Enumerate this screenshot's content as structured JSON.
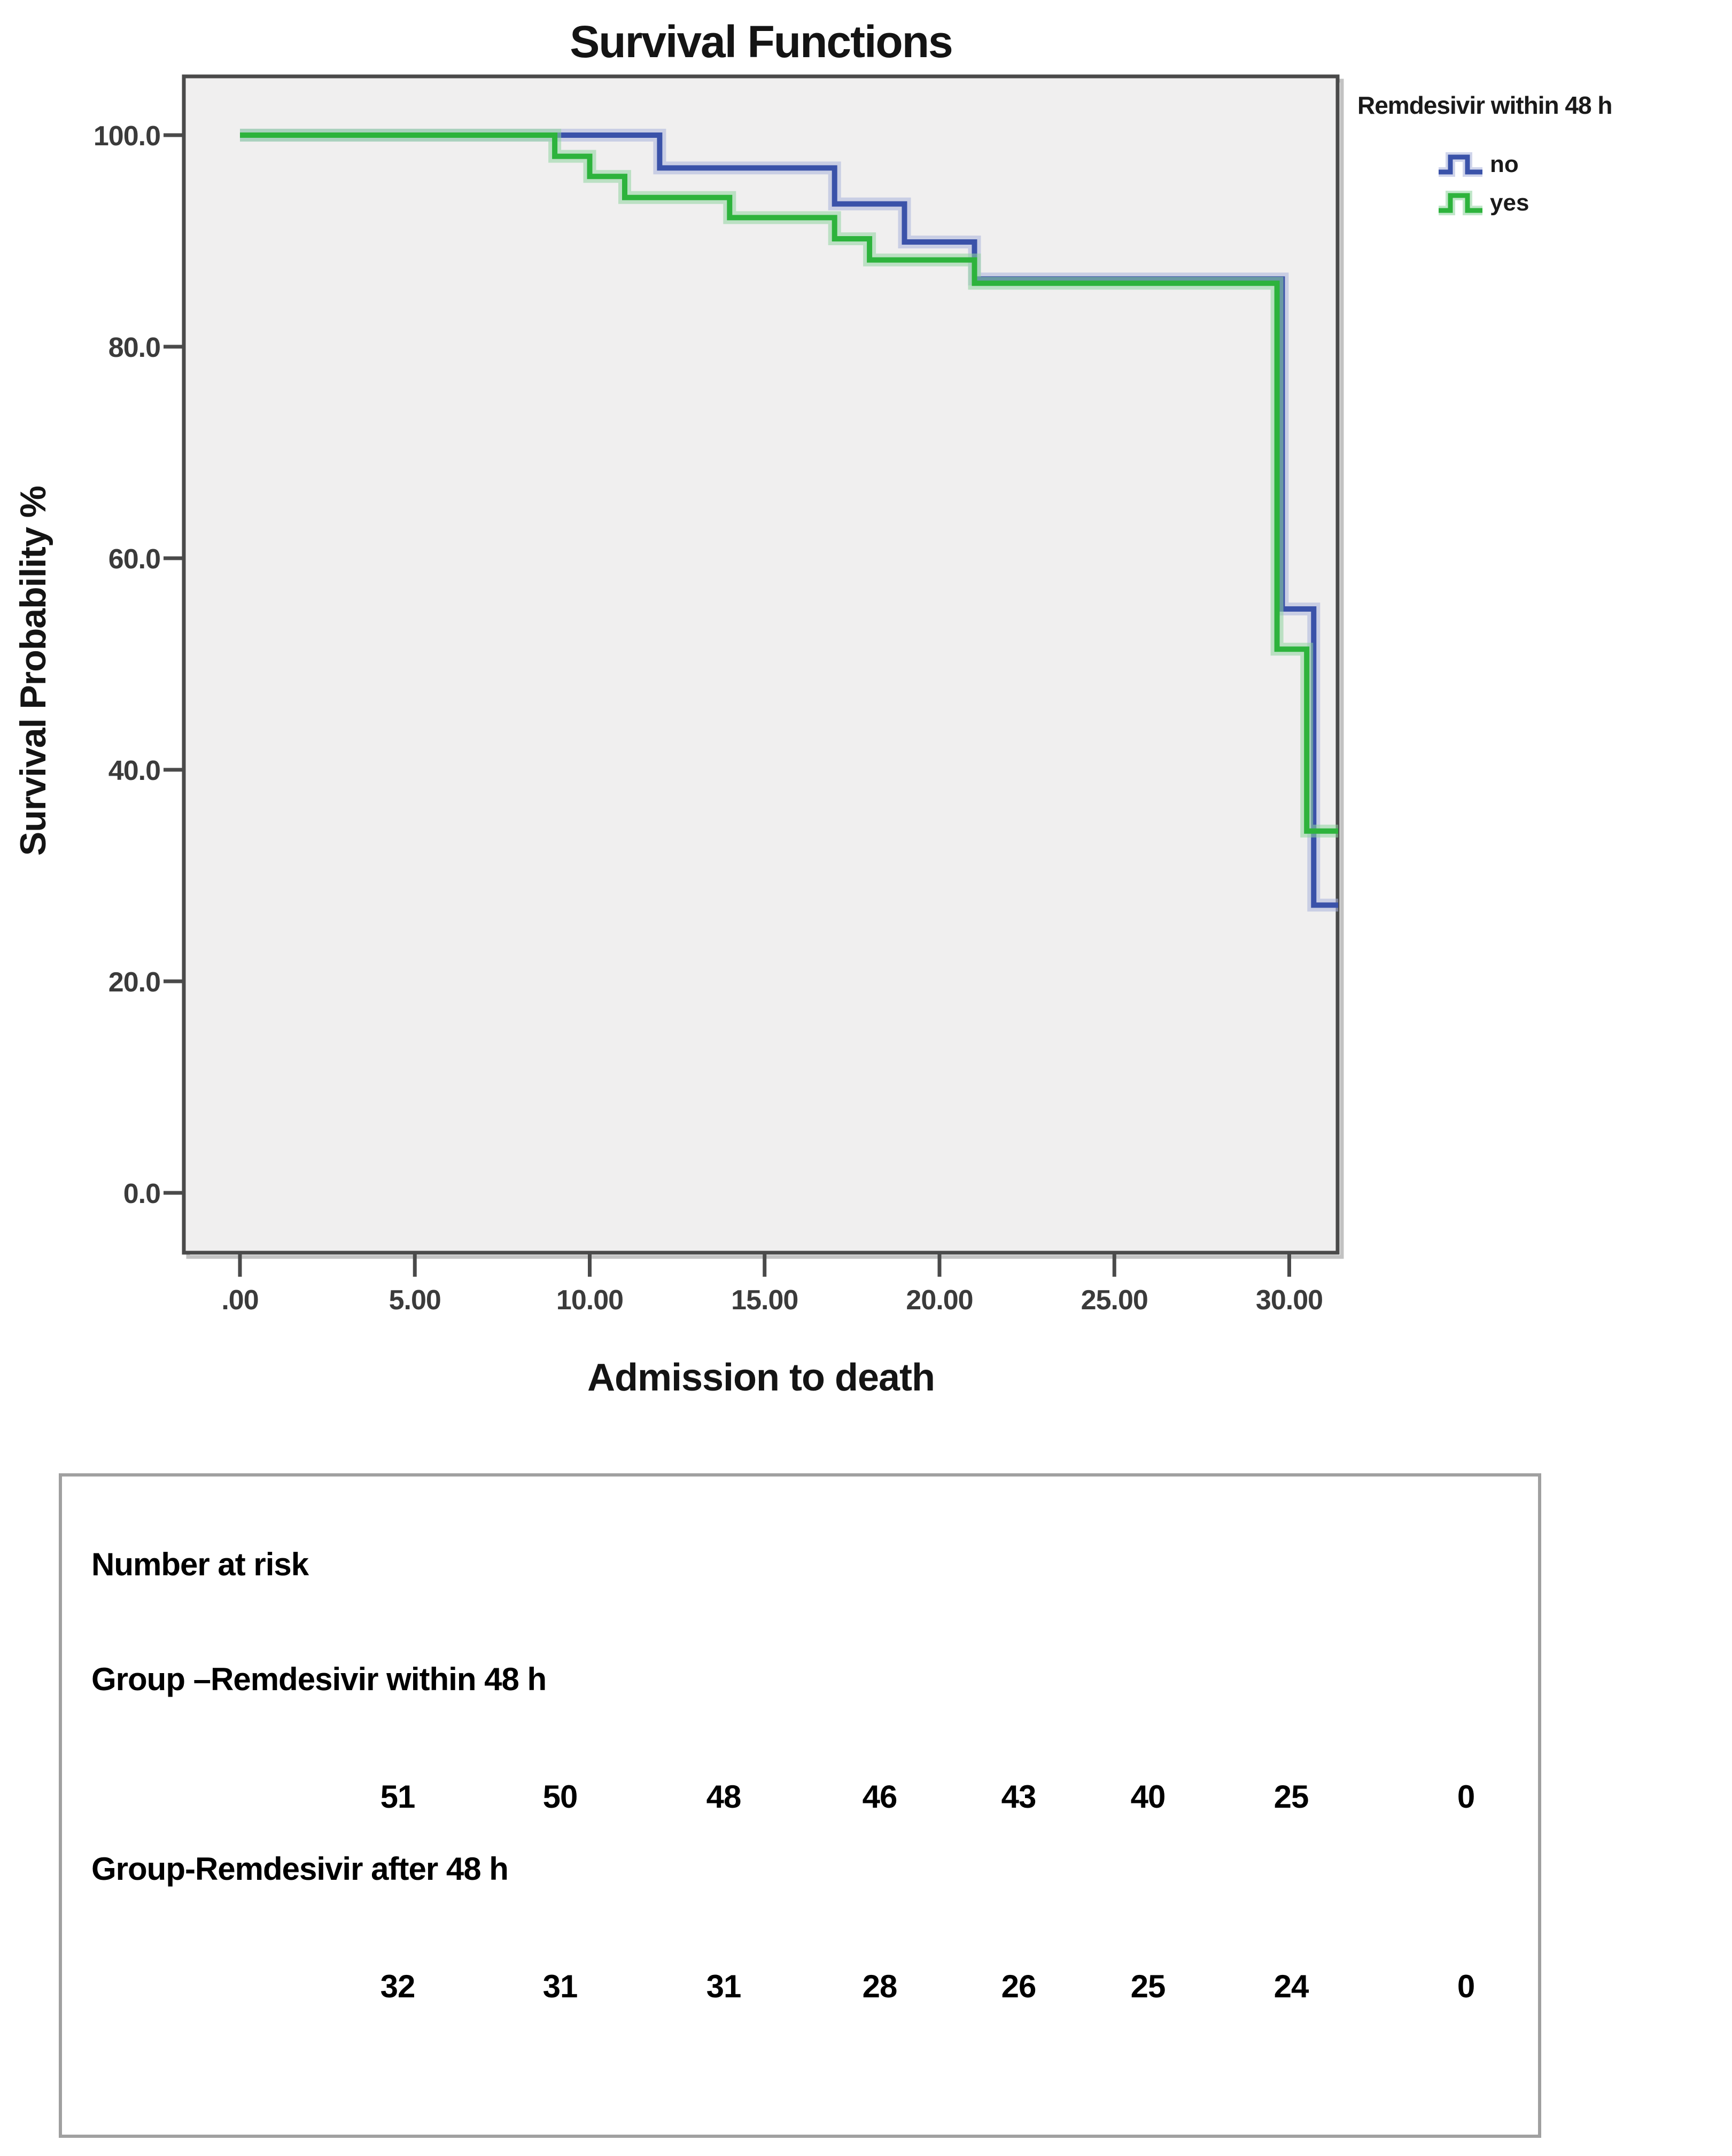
{
  "chart": {
    "title": "Survival Functions",
    "x_axis": {
      "title": "Admission to death",
      "tick_labels": [
        ".00",
        "5.00",
        "10.00",
        "15.00",
        "20.00",
        "25.00",
        "30.00"
      ],
      "tick_values": [
        0,
        5,
        10,
        15,
        20,
        25,
        30
      ]
    },
    "y_axis": {
      "title": "Survival Probability %",
      "tick_labels": [
        "100.0",
        "80.0",
        "60.0",
        "40.0",
        "20.0",
        "0.0"
      ],
      "tick_values": [
        100,
        80,
        60,
        40,
        20,
        0
      ]
    },
    "legend": {
      "title": "Remdesivir within 48 h",
      "entries": [
        {
          "label": "no",
          "color": "#3a52a9",
          "halo": "#a9b3da"
        },
        {
          "label": "yes",
          "color": "#2db33c",
          "halo": "#8fd49f"
        }
      ]
    },
    "plot_background": "#f0efef",
    "frame_color": "#4a4a4a",
    "frame_shadow_color": "#c2c2c2"
  },
  "chart_data": {
    "type": "line",
    "subtype": "kaplan_meier_step",
    "title": "Survival Functions",
    "xlabel": "Admission to death",
    "ylabel": "Survival Probability %",
    "xlim": [
      -1.6,
      31.6
    ],
    "ylim": [
      -4.5,
      105.5
    ],
    "x_ticks": [
      0,
      5,
      10,
      15,
      20,
      25,
      30
    ],
    "y_ticks": [
      100,
      80,
      60,
      40,
      20,
      0
    ],
    "grid": false,
    "legend_position": "outside-top-right",
    "series": [
      {
        "name": "no",
        "color": "#3a52a9",
        "halo": "#a9b3da",
        "points": [
          [
            0,
            100
          ],
          [
            12,
            100
          ],
          [
            12,
            96.9
          ],
          [
            17,
            96.9
          ],
          [
            17,
            93.5
          ],
          [
            19,
            93.5
          ],
          [
            19,
            89.9
          ],
          [
            21,
            89.9
          ],
          [
            21,
            86.4
          ],
          [
            29.8,
            86.4
          ],
          [
            29.8,
            55.2
          ],
          [
            30.7,
            55.2
          ],
          [
            30.7,
            27.2
          ],
          [
            31.4,
            27.2
          ]
        ]
      },
      {
        "name": "yes",
        "color": "#2db33c",
        "halo": "#8fd49f",
        "points": [
          [
            0,
            100
          ],
          [
            9,
            100
          ],
          [
            9,
            98
          ],
          [
            10,
            98
          ],
          [
            10,
            96.1
          ],
          [
            11,
            96.1
          ],
          [
            11,
            94.1
          ],
          [
            14,
            94.1
          ],
          [
            14,
            92.2
          ],
          [
            17,
            92.2
          ],
          [
            17,
            90.2
          ],
          [
            18,
            90.2
          ],
          [
            18,
            88.2
          ],
          [
            21,
            88.2
          ],
          [
            21,
            86
          ],
          [
            29.65,
            86
          ],
          [
            29.65,
            51.4
          ],
          [
            30.5,
            51.4
          ],
          [
            30.5,
            34.2
          ],
          [
            31.4,
            34.2
          ]
        ]
      }
    ]
  },
  "risk_table": {
    "heading": "Number at risk",
    "groups": [
      {
        "label": "Group –Remdesivir within 48 h",
        "counts": [
          "51",
          "50",
          "48",
          "46",
          "43",
          "40",
          "25",
          "0"
        ]
      },
      {
        "label": "Group-Remdesivir after 48 h",
        "counts": [
          "32",
          "31",
          "31",
          "28",
          "26",
          "25",
          "24",
          "0"
        ]
      }
    ]
  }
}
